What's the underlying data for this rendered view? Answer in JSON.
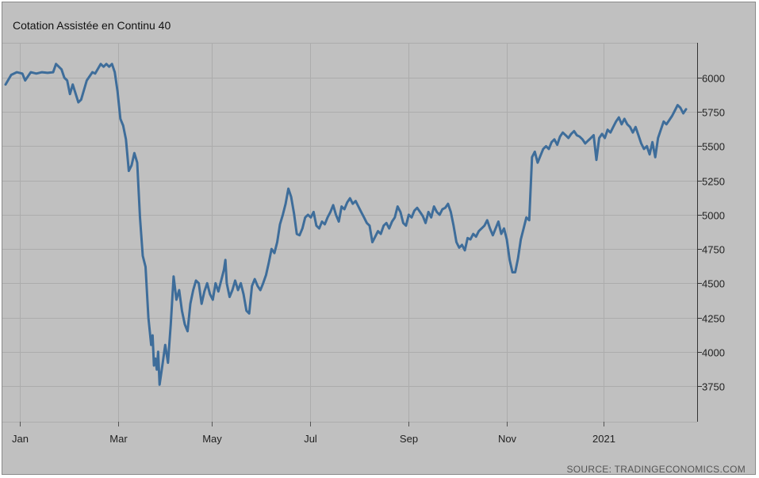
{
  "chart_data": {
    "type": "line",
    "title": "Cotation Assistée en Continu 40",
    "source": "SOURCE: TRADINGECONOMICS.COM",
    "xlabel": "",
    "ylabel": "",
    "x_ticks": [
      "Jan",
      "Mar",
      "May",
      "Jul",
      "Sep",
      "Nov",
      "2021"
    ],
    "y_ticks": [
      3750,
      4000,
      4250,
      4500,
      4750,
      5000,
      5250,
      5500,
      5750,
      6000
    ],
    "ylim": [
      3500,
      6250
    ],
    "grid": true,
    "line_color": "#3e6d9a",
    "series": [
      {
        "values": [
          [
            0,
            5950
          ],
          [
            2,
            6020
          ],
          [
            4,
            6040
          ],
          [
            6,
            6030
          ],
          [
            7,
            5980
          ],
          [
            9,
            6040
          ],
          [
            11,
            6030
          ],
          [
            13,
            6040
          ],
          [
            15,
            6035
          ],
          [
            17,
            6040
          ],
          [
            18,
            6100
          ],
          [
            20,
            6060
          ],
          [
            21,
            6000
          ],
          [
            22,
            5980
          ],
          [
            23,
            5880
          ],
          [
            24,
            5950
          ],
          [
            26,
            5820
          ],
          [
            27,
            5840
          ],
          [
            29,
            5980
          ],
          [
            31,
            6040
          ],
          [
            32,
            6030
          ],
          [
            34,
            6100
          ],
          [
            35,
            6080
          ],
          [
            36,
            6100
          ],
          [
            37,
            6080
          ],
          [
            38,
            6100
          ],
          [
            39,
            6040
          ],
          [
            40,
            5900
          ],
          [
            41,
            5700
          ],
          [
            42,
            5650
          ],
          [
            43,
            5550
          ],
          [
            44,
            5320
          ],
          [
            45,
            5360
          ],
          [
            46,
            5450
          ],
          [
            47,
            5380
          ],
          [
            48,
            4980
          ],
          [
            49,
            4700
          ],
          [
            50,
            4620
          ],
          [
            51,
            4250
          ],
          [
            52,
            4050
          ],
          [
            52.5,
            4120
          ],
          [
            53,
            3900
          ],
          [
            53.5,
            3950
          ],
          [
            54,
            3870
          ],
          [
            54.5,
            4000
          ],
          [
            55,
            3760
          ],
          [
            56,
            3900
          ],
          [
            57,
            4050
          ],
          [
            58,
            3920
          ],
          [
            59,
            4200
          ],
          [
            60,
            4550
          ],
          [
            61,
            4380
          ],
          [
            62,
            4450
          ],
          [
            63,
            4300
          ],
          [
            64,
            4200
          ],
          [
            65,
            4150
          ],
          [
            66,
            4350
          ],
          [
            67,
            4450
          ],
          [
            68,
            4520
          ],
          [
            69,
            4500
          ],
          [
            70,
            4350
          ],
          [
            71,
            4440
          ],
          [
            72,
            4500
          ],
          [
            73,
            4420
          ],
          [
            74,
            4380
          ],
          [
            75,
            4500
          ],
          [
            76,
            4440
          ],
          [
            77,
            4520
          ],
          [
            78,
            4600
          ],
          [
            78.5,
            4670
          ],
          [
            79,
            4500
          ],
          [
            80,
            4400
          ],
          [
            81,
            4450
          ],
          [
            82,
            4520
          ],
          [
            83,
            4450
          ],
          [
            84,
            4500
          ],
          [
            85,
            4420
          ],
          [
            86,
            4300
          ],
          [
            87,
            4280
          ],
          [
            88,
            4480
          ],
          [
            89,
            4530
          ],
          [
            90,
            4480
          ],
          [
            91,
            4450
          ],
          [
            92,
            4500
          ],
          [
            93,
            4560
          ],
          [
            94,
            4650
          ],
          [
            95,
            4750
          ],
          [
            96,
            4720
          ],
          [
            97,
            4800
          ],
          [
            98,
            4930
          ],
          [
            99,
            5000
          ],
          [
            100,
            5080
          ],
          [
            101,
            5190
          ],
          [
            102,
            5130
          ],
          [
            103,
            5010
          ],
          [
            104,
            4860
          ],
          [
            105,
            4850
          ],
          [
            106,
            4900
          ],
          [
            107,
            4980
          ],
          [
            108,
            5000
          ],
          [
            109,
            4980
          ],
          [
            110,
            5020
          ],
          [
            111,
            4920
          ],
          [
            112,
            4900
          ],
          [
            113,
            4950
          ],
          [
            114,
            4930
          ],
          [
            115,
            4980
          ],
          [
            116,
            5020
          ],
          [
            117,
            5070
          ],
          [
            118,
            5000
          ],
          [
            119,
            4950
          ],
          [
            120,
            5060
          ],
          [
            121,
            5040
          ],
          [
            122,
            5090
          ],
          [
            123,
            5120
          ],
          [
            124,
            5080
          ],
          [
            125,
            5100
          ],
          [
            126,
            5060
          ],
          [
            127,
            5020
          ],
          [
            128,
            4980
          ],
          [
            129,
            4940
          ],
          [
            130,
            4920
          ],
          [
            131,
            4800
          ],
          [
            132,
            4840
          ],
          [
            133,
            4880
          ],
          [
            134,
            4860
          ],
          [
            135,
            4920
          ],
          [
            136,
            4940
          ],
          [
            137,
            4900
          ],
          [
            138,
            4950
          ],
          [
            139,
            4980
          ],
          [
            140,
            5060
          ],
          [
            141,
            5020
          ],
          [
            142,
            4940
          ],
          [
            143,
            4920
          ],
          [
            144,
            5000
          ],
          [
            145,
            4980
          ],
          [
            146,
            5030
          ],
          [
            147,
            5050
          ],
          [
            148,
            5020
          ],
          [
            149,
            4990
          ],
          [
            150,
            4940
          ],
          [
            151,
            5020
          ],
          [
            152,
            4980
          ],
          [
            153,
            5060
          ],
          [
            154,
            5020
          ],
          [
            155,
            5000
          ],
          [
            156,
            5040
          ],
          [
            157,
            5050
          ],
          [
            158,
            5080
          ],
          [
            159,
            5020
          ],
          [
            160,
            4920
          ],
          [
            161,
            4800
          ],
          [
            162,
            4760
          ],
          [
            163,
            4780
          ],
          [
            164,
            4740
          ],
          [
            165,
            4830
          ],
          [
            166,
            4820
          ],
          [
            167,
            4860
          ],
          [
            168,
            4840
          ],
          [
            169,
            4880
          ],
          [
            170,
            4900
          ],
          [
            171,
            4920
          ],
          [
            172,
            4960
          ],
          [
            173,
            4900
          ],
          [
            174,
            4850
          ],
          [
            175,
            4900
          ],
          [
            176,
            4950
          ],
          [
            177,
            4860
          ],
          [
            178,
            4900
          ],
          [
            179,
            4820
          ],
          [
            180,
            4670
          ],
          [
            181,
            4580
          ],
          [
            182,
            4580
          ],
          [
            183,
            4680
          ],
          [
            184,
            4820
          ],
          [
            185,
            4900
          ],
          [
            186,
            4980
          ],
          [
            187,
            4960
          ],
          [
            188,
            5420
          ],
          [
            189,
            5460
          ],
          [
            190,
            5380
          ],
          [
            191,
            5430
          ],
          [
            192,
            5480
          ],
          [
            193,
            5500
          ],
          [
            194,
            5480
          ],
          [
            195,
            5530
          ],
          [
            196,
            5550
          ],
          [
            197,
            5510
          ],
          [
            198,
            5570
          ],
          [
            199,
            5600
          ],
          [
            200,
            5580
          ],
          [
            201,
            5560
          ],
          [
            202,
            5590
          ],
          [
            203,
            5610
          ],
          [
            204,
            5580
          ],
          [
            205,
            5570
          ],
          [
            206,
            5550
          ],
          [
            207,
            5520
          ],
          [
            208,
            5540
          ],
          [
            209,
            5560
          ],
          [
            210,
            5580
          ],
          [
            211,
            5400
          ],
          [
            212,
            5560
          ],
          [
            213,
            5590
          ],
          [
            214,
            5560
          ],
          [
            215,
            5620
          ],
          [
            216,
            5600
          ],
          [
            217,
            5640
          ],
          [
            218,
            5680
          ],
          [
            219,
            5710
          ],
          [
            220,
            5660
          ],
          [
            221,
            5700
          ],
          [
            222,
            5660
          ],
          [
            223,
            5640
          ],
          [
            224,
            5600
          ],
          [
            225,
            5640
          ],
          [
            226,
            5580
          ],
          [
            227,
            5520
          ],
          [
            228,
            5480
          ],
          [
            229,
            5500
          ],
          [
            230,
            5440
          ],
          [
            231,
            5530
          ],
          [
            232,
            5420
          ],
          [
            233,
            5560
          ],
          [
            234,
            5620
          ],
          [
            235,
            5680
          ],
          [
            236,
            5660
          ],
          [
            237,
            5690
          ],
          [
            238,
            5720
          ],
          [
            239,
            5760
          ],
          [
            240,
            5800
          ],
          [
            241,
            5780
          ],
          [
            242,
            5740
          ],
          [
            243,
            5770
          ]
        ]
      }
    ]
  }
}
